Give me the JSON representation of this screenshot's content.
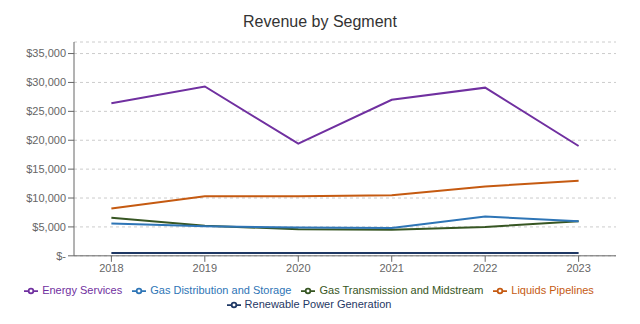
{
  "chart_data": {
    "type": "line",
    "title": "Revenue by Segment",
    "x": [
      2018,
      2019,
      2020,
      2021,
      2022,
      2023
    ],
    "series": [
      {
        "name": "Renewable Power Generation",
        "color": "#1f3864",
        "values": [
          500,
          500,
          500,
          500,
          500,
          500
        ]
      },
      {
        "name": "Liquids Pipelines",
        "color": "#c55a11",
        "values": [
          8200,
          10300,
          10300,
          10500,
          12000,
          13000
        ]
      },
      {
        "name": "Gas Transmission and Midstream",
        "color": "#375623",
        "values": [
          6600,
          5200,
          4600,
          4500,
          5000,
          6000
        ]
      },
      {
        "name": "Gas Distribution and Storage",
        "color": "#2e75b6",
        "values": [
          5600,
          5100,
          4900,
          4800,
          6800,
          6000
        ]
      },
      {
        "name": "Energy Services",
        "color": "#7030a0",
        "values": [
          26400,
          29300,
          19400,
          27000,
          29100,
          19000
        ]
      }
    ],
    "xlim": [
      2017.6,
      2023.4
    ],
    "xticks": [
      2018,
      2019,
      2020,
      2021,
      2022,
      2023
    ],
    "ylim": [
      0,
      37000
    ],
    "yticks": [
      {
        "value": 0,
        "label": "$-"
      },
      {
        "value": 5000,
        "label": "$5,000"
      },
      {
        "value": 10000,
        "label": "$10,000"
      },
      {
        "value": 15000,
        "label": "$15,000"
      },
      {
        "value": 20000,
        "label": "$20,000"
      },
      {
        "value": 25000,
        "label": "$25,000"
      },
      {
        "value": 30000,
        "label": "$30,000"
      },
      {
        "value": 35000,
        "label": "$35,000"
      }
    ],
    "grid": "y",
    "legend": "bottom"
  }
}
